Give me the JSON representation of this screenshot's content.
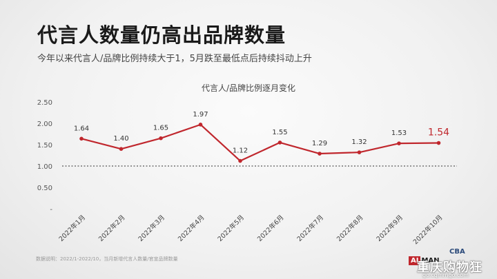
{
  "title": "代言人数量仍高出品牌数量",
  "subtitle": "今年以来代言人/品牌比例持续大于1，5月跌至最低点后持续抖动上升",
  "footnote": "数据说明：2022/1-2022/10，当月新增代言人数量/官宣品牌数量",
  "logos": {
    "ai_box": "AI",
    "ai_text": "MAN",
    "cba": "CBA"
  },
  "watermark": {
    "text": "重庆购物狂",
    "url": "go.cqmmgo.com"
  },
  "chart_data": {
    "type": "line",
    "title": "代言人/品牌比例逐月变化",
    "categories": [
      "2022年1月",
      "2022年2月",
      "2022年3月",
      "2022年4月",
      "2022年5月",
      "2022年6月",
      "2022年7月",
      "2022年8月",
      "2022年9月",
      "2022年10月"
    ],
    "series": [
      {
        "values": [
          1.64,
          1.4,
          1.65,
          1.97,
          1.12,
          1.55,
          1.29,
          1.32,
          1.53,
          1.54
        ],
        "color": "#c0272d"
      }
    ],
    "value_labels": [
      "1.64",
      "1.40",
      "1.65",
      "1.97",
      "1.12",
      "1.55",
      "1.29",
      "1.32",
      "1.53",
      "1.54"
    ],
    "yticks": [
      "-",
      "0.50",
      "1.00",
      "1.50",
      "2.00",
      "2.50"
    ],
    "ylim": [
      0,
      2.5
    ],
    "reference_line": {
      "y": 1.0,
      "style": "dotted"
    },
    "highlight_last": true,
    "xlabel": "",
    "ylabel": "",
    "grid": false
  }
}
